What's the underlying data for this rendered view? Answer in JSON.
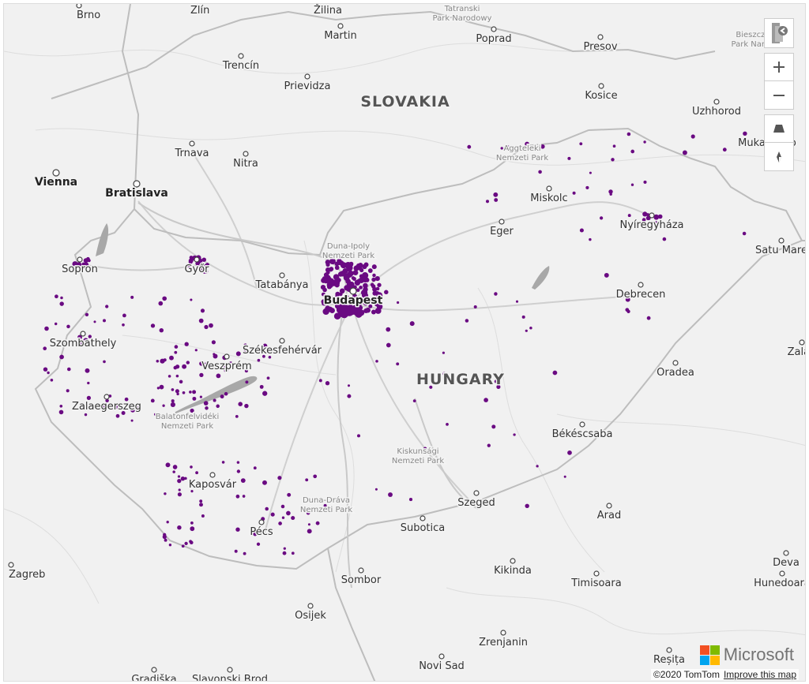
{
  "map": {
    "countries": [
      {
        "name": "SLOVAKIA"
      },
      {
        "name": "HUNGARY"
      }
    ],
    "cities": [
      {
        "name": "Brno",
        "dot": true
      },
      {
        "name": "Zlín",
        "dot": true
      },
      {
        "name": "Žilina",
        "dot": true
      },
      {
        "name": "Martin",
        "dot": true
      },
      {
        "name": "Poprad",
        "dot": true
      },
      {
        "name": "Presov",
        "dot": true
      },
      {
        "name": "Trencín",
        "dot": true
      },
      {
        "name": "Prievidza",
        "dot": true
      },
      {
        "name": "Kosice",
        "dot": true
      },
      {
        "name": "Uzhhorod",
        "dot": true
      },
      {
        "name": "Mukachevo",
        "dot": true
      },
      {
        "name": "Trnava",
        "dot": true
      },
      {
        "name": "Nitra",
        "dot": true
      },
      {
        "name": "Vienna",
        "dot": true,
        "bold": true
      },
      {
        "name": "Bratislava",
        "dot": true,
        "bold": true
      },
      {
        "name": "Miskolc",
        "dot": true
      },
      {
        "name": "Eger",
        "dot": true
      },
      {
        "name": "Nyíregyháza",
        "dot": true
      },
      {
        "name": "Satu Mare",
        "dot": true
      },
      {
        "name": "Sopron",
        "dot": true
      },
      {
        "name": "Győr",
        "dot": true
      },
      {
        "name": "Tatabánya",
        "dot": true
      },
      {
        "name": "Budapest",
        "dot": true,
        "bold": true
      },
      {
        "name": "Debrecen",
        "dot": true
      },
      {
        "name": "Szombathely",
        "dot": true
      },
      {
        "name": "Székesfehérvár",
        "dot": true
      },
      {
        "name": "Veszprém",
        "dot": true
      },
      {
        "name": "Zalaegerszeg",
        "dot": true
      },
      {
        "name": "Oradea",
        "dot": true
      },
      {
        "name": "Zalău",
        "dot": true
      },
      {
        "name": "Békéscsaba",
        "dot": true
      },
      {
        "name": "Kaposvár",
        "dot": true
      },
      {
        "name": "Szeged",
        "dot": true
      },
      {
        "name": "Arad",
        "dot": true
      },
      {
        "name": "Subotica",
        "dot": true
      },
      {
        "name": "Pécs",
        "dot": true
      },
      {
        "name": "Deva",
        "dot": true
      },
      {
        "name": "Hunedoara",
        "dot": true
      },
      {
        "name": "Zagreb",
        "dot": true
      },
      {
        "name": "Kikinda",
        "dot": true
      },
      {
        "name": "Timisoara",
        "dot": true
      },
      {
        "name": "Sombor",
        "dot": true
      },
      {
        "name": "Osijek",
        "dot": true
      },
      {
        "name": "Zrenjanin",
        "dot": true
      },
      {
        "name": "Novi Sad",
        "dot": true
      },
      {
        "name": "Reșița",
        "dot": true
      },
      {
        "name": "Slavonski Brod",
        "dot": true
      },
      {
        "name": "Gradiška",
        "dot": true
      },
      {
        "name": "Bieszczady Park Narodowy",
        "dot": false
      },
      {
        "name": "Tatranský Park Narodowy",
        "dot": false
      }
    ],
    "parks": [
      {
        "name": "Tatranski Park Narodowy"
      },
      {
        "name": "Bieszczadzki Park Narodowy"
      },
      {
        "name": "Aggteleki Nemzeti Park"
      },
      {
        "name": "Duna-Ipoly Nemzeti Park"
      },
      {
        "name": "Balatonfelvidéki Nemzeti Park"
      },
      {
        "name": "Kiskunsági Nemzeti Park"
      },
      {
        "name": "Duna-Dráva Nemzeti Park"
      }
    ],
    "point_color": "#6a0a82",
    "land_color": "#f1f1f1",
    "water_color": "#a8a8a8",
    "border_color": "#c8c8c8"
  },
  "controls": {
    "style_picker_icon": "chevron-left-icon",
    "zoom_in_icon": "plus-icon",
    "zoom_out_icon": "minus-icon",
    "pitch_icon": "pitch-icon",
    "compass_icon": "compass-icon"
  },
  "footer": {
    "copyright": "©2020 TomTom",
    "improve_link": "Improve this map"
  },
  "logo": {
    "text": "Microsoft",
    "colors": [
      "#f25022",
      "#7fba00",
      "#00a4ef",
      "#ffb900"
    ]
  }
}
